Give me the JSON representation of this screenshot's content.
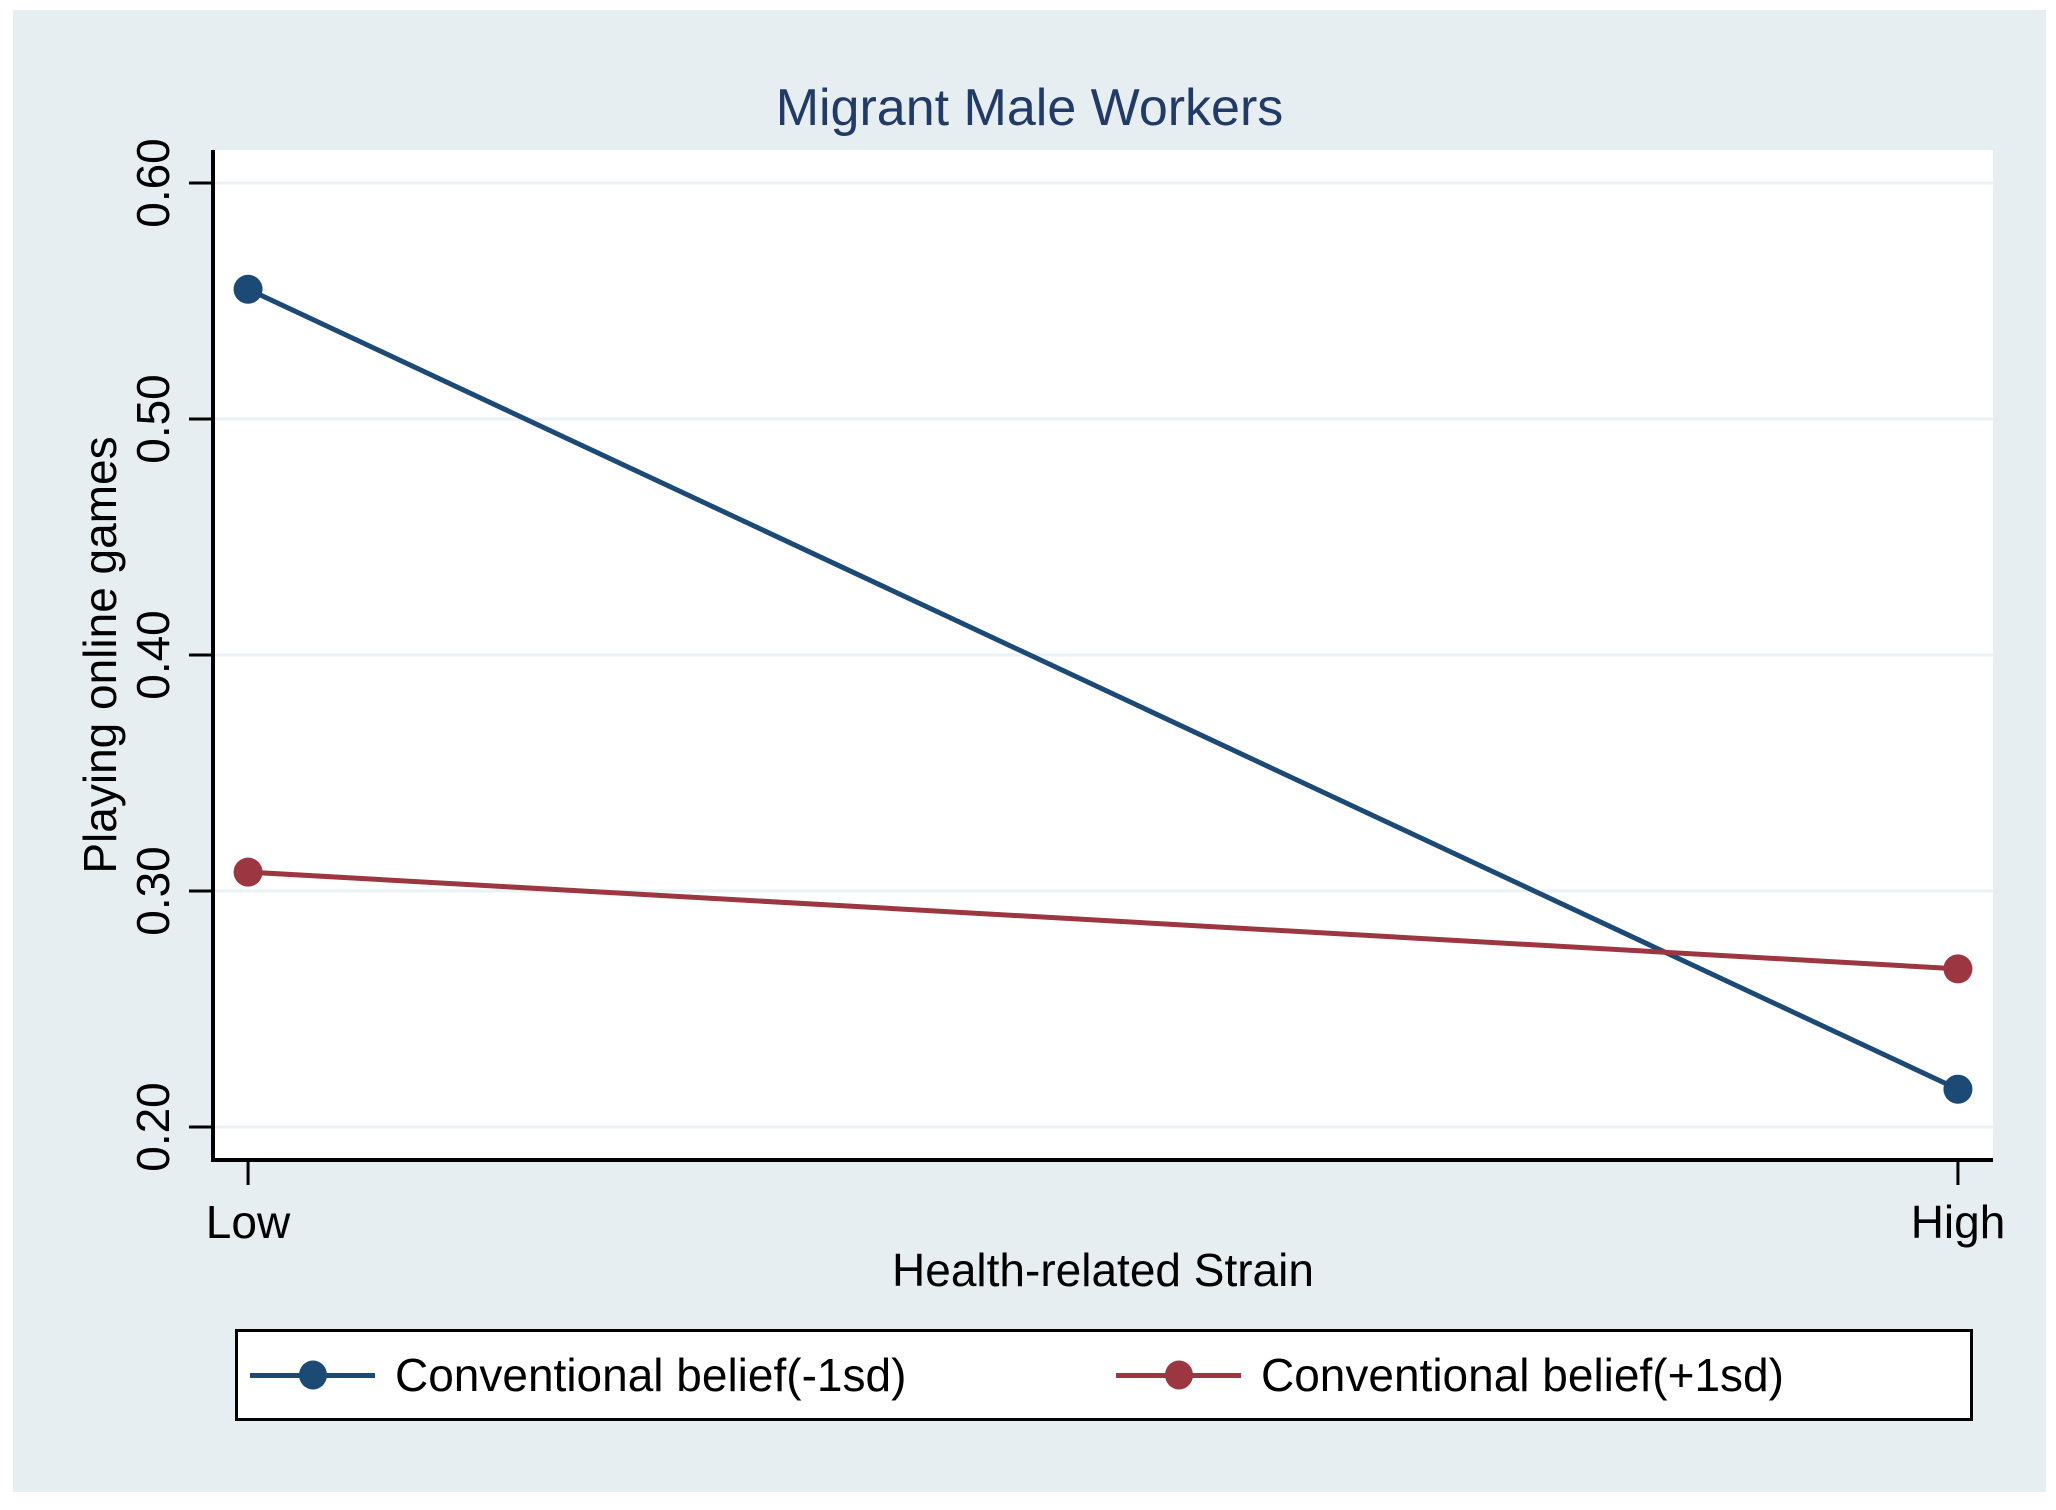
{
  "chart_data": {
    "type": "line",
    "title": "Migrant Male Workers",
    "xlabel": "Health-related Strain",
    "ylabel": "Playing online games",
    "categories": [
      "Low",
      "High"
    ],
    "series": [
      {
        "name": "Conventional belief(-1sd)",
        "color": "#1d4a74",
        "values": [
          0.555,
          0.216
        ]
      },
      {
        "name": "Conventional belief(+1sd)",
        "color": "#9c3640",
        "values": [
          0.308,
          0.267
        ]
      }
    ],
    "yticks": [
      0.2,
      0.3,
      0.4,
      0.5,
      0.6
    ],
    "ytick_labels": [
      "0.20",
      "0.30",
      "0.40",
      "0.50",
      "0.60"
    ],
    "ylim": [
      0.186,
      0.614
    ],
    "grid": true,
    "legend_position": "bottom"
  },
  "colors": {
    "figure_background": "#e7eef1",
    "plot_background": "#ffffff",
    "gridline": "#e9f2f4",
    "axis": "#000000",
    "title": "#213a66",
    "legend_border": "#000000"
  }
}
